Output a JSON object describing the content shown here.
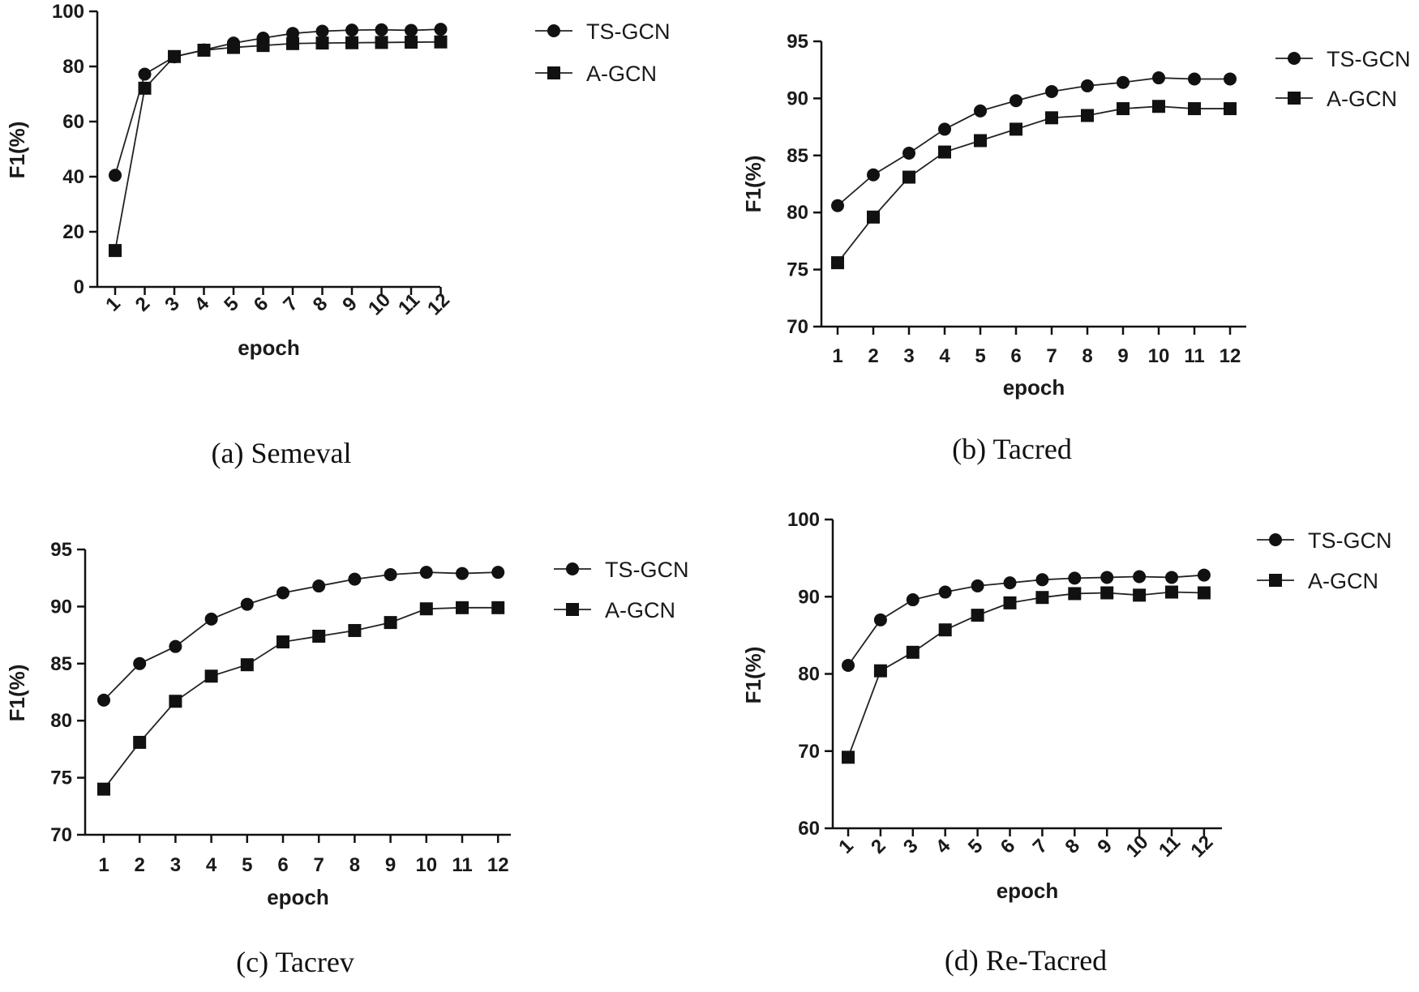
{
  "chart_data": [
    {
      "type": "line",
      "caption": "(a) Semeval",
      "xlabel": "epoch",
      "ylabel": "F1(%)",
      "categories": [
        "1",
        "2",
        "3",
        "4",
        "5",
        "6",
        "7",
        "8",
        "9",
        "10",
        "11",
        "12"
      ],
      "ylim": [
        0,
        100
      ],
      "yticks": [
        0,
        20,
        40,
        60,
        80,
        100
      ],
      "rotated_x_ticks": true,
      "legend": [
        "TS-GCN",
        "A-GCN"
      ],
      "series": [
        {
          "name": "TS-GCN",
          "marker": "circle",
          "values": [
            40.5,
            77.2,
            83.5,
            86.0,
            88.5,
            90.3,
            92.0,
            92.8,
            93.2,
            93.3,
            93.1,
            93.5
          ]
        },
        {
          "name": "A-GCN",
          "marker": "square",
          "values": [
            13.2,
            72.1,
            83.6,
            85.9,
            86.9,
            87.6,
            88.3,
            88.5,
            88.6,
            88.7,
            88.8,
            88.9
          ]
        }
      ]
    },
    {
      "type": "line",
      "caption": "(b) Tacred",
      "xlabel": "epoch",
      "ylabel": "F1(%)",
      "categories": [
        "1",
        "2",
        "3",
        "4",
        "5",
        "6",
        "7",
        "8",
        "9",
        "10",
        "11",
        "12"
      ],
      "ylim": [
        70,
        95
      ],
      "yticks": [
        70,
        75,
        80,
        85,
        90,
        95
      ],
      "rotated_x_ticks": false,
      "legend": [
        "TS-GCN",
        "A-GCN"
      ],
      "series": [
        {
          "name": "TS-GCN",
          "marker": "circle",
          "values": [
            80.6,
            83.3,
            85.2,
            87.3,
            88.9,
            89.8,
            90.6,
            91.1,
            91.4,
            91.8,
            91.7,
            91.7
          ]
        },
        {
          "name": "A-GCN",
          "marker": "square",
          "values": [
            75.6,
            79.6,
            83.1,
            85.3,
            86.3,
            87.3,
            88.3,
            88.5,
            89.1,
            89.3,
            89.1,
            89.1
          ]
        }
      ]
    },
    {
      "type": "line",
      "caption": "(c) Tacrev",
      "xlabel": "epoch",
      "ylabel": "F1(%)",
      "categories": [
        "1",
        "2",
        "3",
        "4",
        "5",
        "6",
        "7",
        "8",
        "9",
        "10",
        "11",
        "12"
      ],
      "ylim": [
        70,
        95
      ],
      "yticks": [
        70,
        75,
        80,
        85,
        90,
        95
      ],
      "rotated_x_ticks": false,
      "legend": [
        "TS-GCN",
        "A-GCN"
      ],
      "series": [
        {
          "name": "TS-GCN",
          "marker": "circle",
          "values": [
            81.8,
            85.0,
            86.5,
            88.9,
            90.2,
            91.2,
            91.8,
            92.4,
            92.8,
            93.0,
            92.9,
            93.0
          ]
        },
        {
          "name": "A-GCN",
          "marker": "square",
          "values": [
            74.0,
            78.1,
            81.7,
            83.9,
            84.9,
            86.9,
            87.4,
            87.9,
            88.6,
            89.8,
            89.9,
            89.9
          ]
        }
      ]
    },
    {
      "type": "line",
      "caption": "(d) Re-Tacred",
      "xlabel": "epoch",
      "ylabel": "F1(%)",
      "categories": [
        "1",
        "2",
        "3",
        "4",
        "5",
        "6",
        "7",
        "8",
        "9",
        "10",
        "11",
        "12"
      ],
      "ylim": [
        60,
        100
      ],
      "yticks": [
        60,
        70,
        80,
        90,
        100
      ],
      "rotated_x_ticks": true,
      "legend": [
        "TS-GCN",
        "A-GCN"
      ],
      "series": [
        {
          "name": "TS-GCN",
          "marker": "circle",
          "values": [
            81.1,
            87.0,
            89.6,
            90.6,
            91.4,
            91.8,
            92.2,
            92.4,
            92.5,
            92.6,
            92.5,
            92.8
          ]
        },
        {
          "name": "A-GCN",
          "marker": "square",
          "values": [
            69.2,
            80.4,
            82.8,
            85.7,
            87.6,
            89.2,
            89.9,
            90.4,
            90.5,
            90.2,
            90.6,
            90.5
          ]
        }
      ]
    }
  ]
}
